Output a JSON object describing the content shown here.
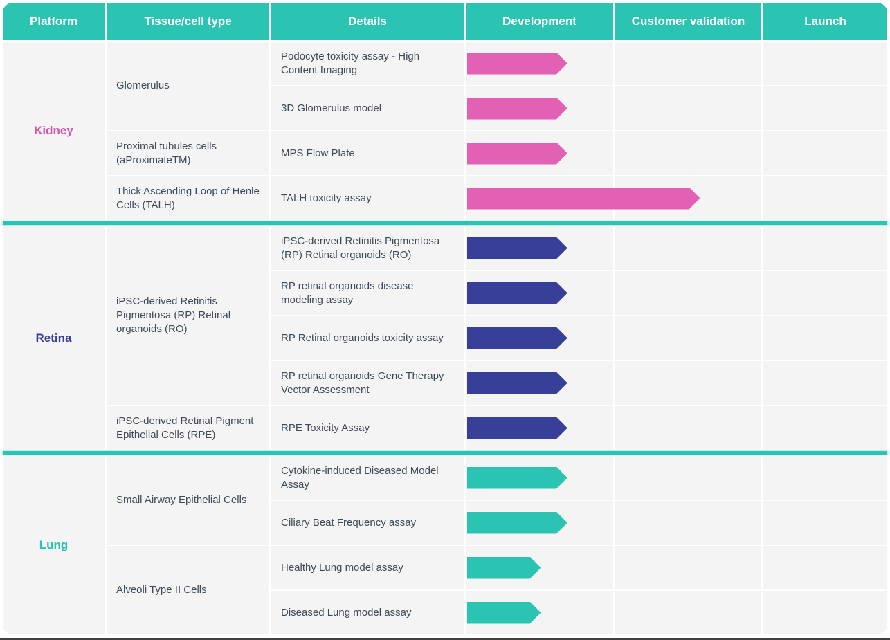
{
  "header": {
    "columns": [
      "Platform",
      "Tissue/cell type",
      "Details",
      "Development",
      "Customer validation",
      "Launch"
    ]
  },
  "colors": {
    "header_teal": "#2bc4b2",
    "kidney_pink": "#e261b4",
    "retina_indigo": "#383f99",
    "lung_teal": "#2bc4b2",
    "cell_background": "#f4f4f4",
    "body_text": "#3e4a57",
    "bottom_bar": "#404040"
  },
  "chart_data": {
    "type": "table",
    "subtype": "gantt-roadmap",
    "stage_columns": [
      "Development",
      "Customer validation",
      "Launch"
    ],
    "note": "progress_pct_of_dev_column = arrow length as % of the Development column width; values >100 extend into Customer validation",
    "sections": [
      {
        "platform": "Kidney",
        "arrow_color": "#e261b4",
        "label_color": "#d553ae",
        "tissues": [
          {
            "name": "Glomerulus",
            "assays": [
              {
                "name": "Podocyte toxicity assay - High Content Imaging",
                "stage": "Development",
                "progress_pct_of_dev_column": 68
              },
              {
                "name": "3D Glomerulus model",
                "stage": "Development",
                "progress_pct_of_dev_column": 68
              }
            ]
          },
          {
            "name": "Proximal tubules cells (aProximateTM)",
            "assays": [
              {
                "name": "MPS Flow Plate",
                "stage": "Development",
                "progress_pct_of_dev_column": 68
              }
            ]
          },
          {
            "name": "Thick Ascending Loop of Henle Cells (TALH)",
            "assays": [
              {
                "name": "TALH toxicity assay",
                "stage": "Customer validation",
                "progress_pct_of_dev_column": 158
              }
            ]
          }
        ]
      },
      {
        "platform": "Retina",
        "arrow_color": "#383f99",
        "label_color": "#383f99",
        "tissues": [
          {
            "name": "iPSC-derived Retinitis Pigmentosa (RP) Retinal organoids (RO)",
            "assays": [
              {
                "name": "iPSC-derived Retinitis Pigmentosa (RP) Retinal organoids (RO)",
                "stage": "Development",
                "progress_pct_of_dev_column": 68
              },
              {
                "name": "RP retinal organoids disease modeling assay",
                "stage": "Development",
                "progress_pct_of_dev_column": 68
              },
              {
                "name": "RP Retinal organoids toxicity assay",
                "stage": "Development",
                "progress_pct_of_dev_column": 68
              },
              {
                "name": "RP retinal organoids Gene Therapy Vector Assessment",
                "stage": "Development",
                "progress_pct_of_dev_column": 68
              }
            ]
          },
          {
            "name": "iPSC-derived Retinal Pigment Epithelial Cells (RPE)",
            "assays": [
              {
                "name": "RPE Toxicity Assay",
                "stage": "Development",
                "progress_pct_of_dev_column": 68
              }
            ]
          }
        ]
      },
      {
        "platform": "Lung",
        "arrow_color": "#2bc4b2",
        "label_color": "#2bc4b2",
        "tissues": [
          {
            "name": "Small Airway Epithelial Cells",
            "assays": [
              {
                "name": "Cytokine-induced Diseased Model Assay",
                "stage": "Development",
                "progress_pct_of_dev_column": 68
              },
              {
                "name": "Ciliary Beat Frequency assay",
                "stage": "Development",
                "progress_pct_of_dev_column": 68
              }
            ]
          },
          {
            "name": "Alveoli Type II Cells",
            "assays": [
              {
                "name": "Healthy Lung model assay",
                "stage": "Development",
                "progress_pct_of_dev_column": 50
              },
              {
                "name": "Diseased Lung model assay",
                "stage": "Development",
                "progress_pct_of_dev_column": 50
              }
            ]
          }
        ]
      }
    ]
  }
}
